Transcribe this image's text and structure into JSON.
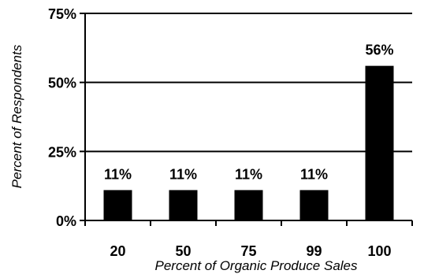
{
  "chart_data": {
    "type": "bar",
    "title": "",
    "xlabel": "Percent of Organic Produce Sales",
    "ylabel": "Percent of Respondents",
    "categories": [
      "20",
      "50",
      "75",
      "99",
      "100"
    ],
    "values": [
      11,
      11,
      11,
      11,
      56
    ],
    "data_labels": [
      "11%",
      "11%",
      "11%",
      "11%",
      "56%"
    ],
    "ylim": [
      0,
      75
    ],
    "y_ticks": [
      0,
      25,
      50,
      75
    ],
    "y_tick_labels": [
      "0%",
      "25%",
      "50%",
      "75%"
    ],
    "grid": "horizontal gridlines at major ticks",
    "bar_color": "#000000",
    "legend": "none"
  }
}
